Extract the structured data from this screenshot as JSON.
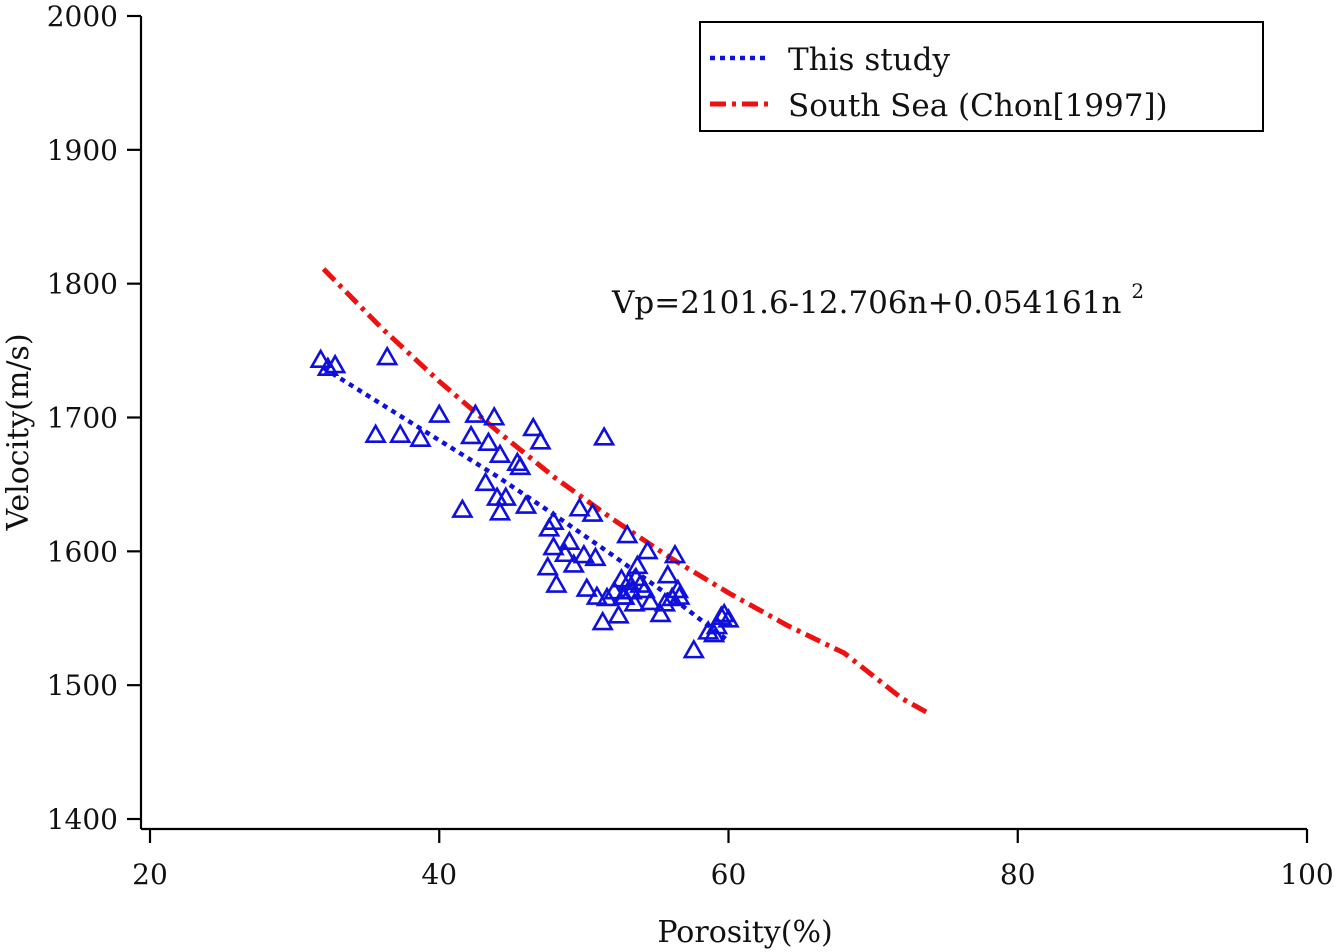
{
  "chart_data": {
    "type": "scatter",
    "xlabel": "Porosity(%)",
    "ylabel": "Velocity(m/s)",
    "xlim": [
      20,
      100
    ],
    "ylim": [
      1400,
      2000
    ],
    "x_ticks": [
      20,
      40,
      60,
      80,
      100
    ],
    "y_ticks": [
      1400,
      1500,
      1600,
      1700,
      1800,
      1900,
      2000
    ],
    "x_tick_labels": [
      "20",
      "40",
      "60",
      "80",
      "100"
    ],
    "y_tick_labels": [
      "1400",
      "1500",
      "1600",
      "1700",
      "1800",
      "1900",
      "2000"
    ],
    "equation": {
      "main": "Vp=2101.6-12.706n+0.054161n",
      "superscript": "2"
    },
    "legend": {
      "position": "top-right",
      "entries": [
        {
          "label": "This study",
          "color": "#1010dd",
          "style": "dotted"
        },
        {
          "label": "South Sea (Chon[1997])",
          "color": "#ee1111",
          "style": "dash-dot"
        }
      ]
    },
    "series": [
      {
        "kind": "scatter",
        "marker": "open-triangle",
        "color": "#1010dd",
        "points": [
          [
            31.8,
            1743
          ],
          [
            32.3,
            1737
          ],
          [
            32.8,
            1739
          ],
          [
            36.4,
            1745
          ],
          [
            35.6,
            1687
          ],
          [
            37.3,
            1687
          ],
          [
            38.7,
            1684
          ],
          [
            40.0,
            1702
          ],
          [
            41.6,
            1631
          ],
          [
            42.2,
            1686
          ],
          [
            42.5,
            1702
          ],
          [
            43.4,
            1681
          ],
          [
            43.8,
            1700
          ],
          [
            43.2,
            1651
          ],
          [
            44.0,
            1640
          ],
          [
            44.2,
            1672
          ],
          [
            44.2,
            1629
          ],
          [
            44.6,
            1640
          ],
          [
            45.4,
            1666
          ],
          [
            45.6,
            1663
          ],
          [
            46.0,
            1634
          ],
          [
            46.5,
            1692
          ],
          [
            47.0,
            1682
          ],
          [
            47.6,
            1617
          ],
          [
            47.9,
            1622
          ],
          [
            47.9,
            1603
          ],
          [
            47.5,
            1588
          ],
          [
            48.1,
            1575
          ],
          [
            48.7,
            1598
          ],
          [
            49.0,
            1607
          ],
          [
            49.3,
            1590
          ],
          [
            49.7,
            1632
          ],
          [
            50.0,
            1597
          ],
          [
            50.2,
            1572
          ],
          [
            50.6,
            1628
          ],
          [
            50.8,
            1595
          ],
          [
            50.9,
            1566
          ],
          [
            51.4,
            1685
          ],
          [
            51.3,
            1547
          ],
          [
            51.6,
            1565
          ],
          [
            52.1,
            1570
          ],
          [
            52.4,
            1552
          ],
          [
            52.6,
            1579
          ],
          [
            52.7,
            1566
          ],
          [
            53.0,
            1612
          ],
          [
            53.1,
            1577
          ],
          [
            53.3,
            1570
          ],
          [
            53.5,
            1561
          ],
          [
            53.7,
            1589
          ],
          [
            53.9,
            1575
          ],
          [
            54.2,
            1571
          ],
          [
            54.4,
            1600
          ],
          [
            54.6,
            1562
          ],
          [
            55.3,
            1553
          ],
          [
            55.6,
            1561
          ],
          [
            55.8,
            1582
          ],
          [
            56.1,
            1565
          ],
          [
            56.3,
            1597
          ],
          [
            56.5,
            1571
          ],
          [
            56.6,
            1566
          ],
          [
            57.6,
            1526
          ],
          [
            58.6,
            1540
          ],
          [
            59.0,
            1538
          ],
          [
            59.2,
            1544
          ],
          [
            59.5,
            1551
          ],
          [
            59.7,
            1553
          ],
          [
            60.0,
            1549
          ],
          [
            52.8,
            1566
          ],
          [
            53.6,
            1580
          ]
        ]
      },
      {
        "kind": "line",
        "name": "This study",
        "color": "#1010dd",
        "style": "dotted",
        "points": [
          [
            32,
            1737
          ],
          [
            36,
            1710
          ],
          [
            40,
            1683
          ],
          [
            44,
            1656
          ],
          [
            48,
            1627
          ],
          [
            52,
            1597
          ],
          [
            56,
            1566
          ],
          [
            60,
            1533
          ]
        ]
      },
      {
        "kind": "line",
        "name": "South Sea (Chon[1997])",
        "color": "#ee1111",
        "style": "dash-dot",
        "points": [
          [
            32,
            1811
          ],
          [
            36,
            1767
          ],
          [
            40,
            1727
          ],
          [
            44,
            1690
          ],
          [
            48,
            1655
          ],
          [
            52,
            1624
          ],
          [
            56,
            1595
          ],
          [
            60,
            1569
          ],
          [
            64,
            1545
          ],
          [
            68,
            1524
          ],
          [
            72,
            1490
          ],
          [
            74,
            1478
          ]
        ]
      }
    ]
  }
}
